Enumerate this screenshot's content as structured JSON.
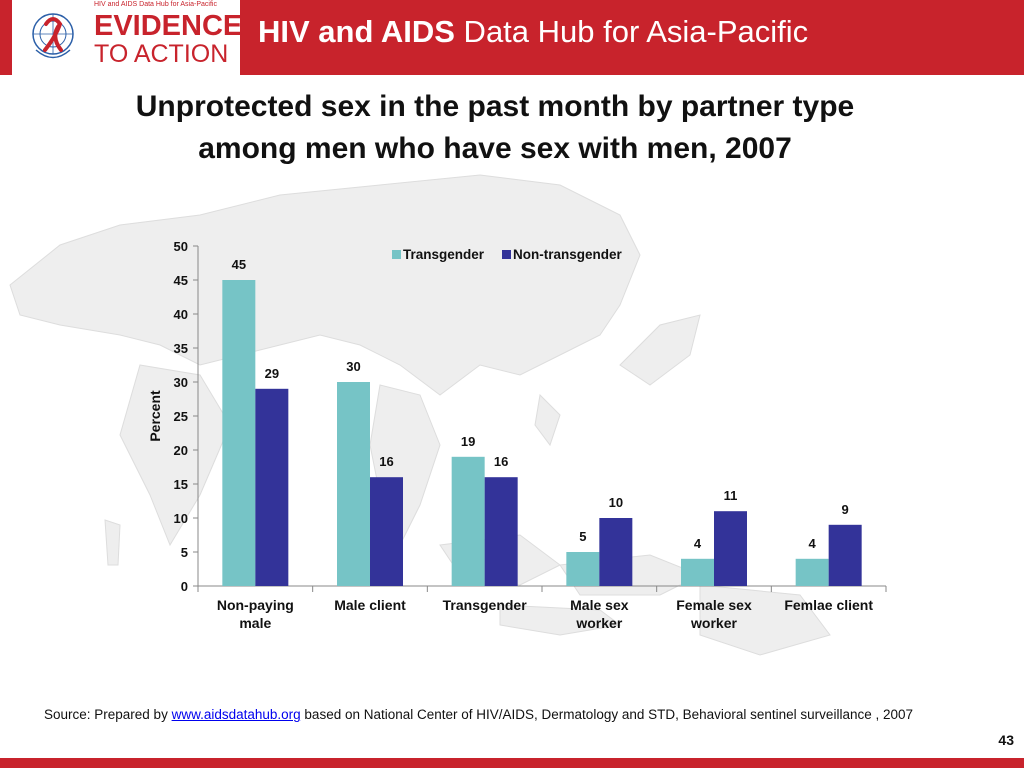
{
  "header": {
    "logo_subtitle": "HIV and AIDS Data Hub for Asia-Pacific",
    "logo_line1": "EVIDENCE",
    "logo_line2": "TO ACTION",
    "hub_title_bold": "HIV and AIDS",
    "hub_title_rest": " Data Hub for Asia-Pacific"
  },
  "slide": {
    "title_line1": "Unprotected sex in the past month by partner type",
    "title_line2": "among men who have sex with men, 2007"
  },
  "footer": {
    "source_prefix": "Source: Prepared by ",
    "source_link": "www.aidsdatahub.org",
    "source_suffix": "  based on National Center of HIV/AIDS, Dermatology and STD, Behavioral sentinel surveillance , 2007",
    "page_number": "43"
  },
  "colors": {
    "brand_red": "#c8232c",
    "transgender": "#76c4c6",
    "non_transgender": "#333399"
  },
  "chart_data": {
    "type": "bar",
    "title": "",
    "xlabel": "",
    "ylabel": "Percent",
    "ylim": [
      0,
      50
    ],
    "yticks": [
      0,
      5,
      10,
      15,
      20,
      25,
      30,
      35,
      40,
      45,
      50
    ],
    "categories": [
      [
        "Non-paying",
        "male"
      ],
      [
        "Male client"
      ],
      [
        "Transgender"
      ],
      [
        "Male sex",
        "worker"
      ],
      [
        "Female sex",
        "worker"
      ],
      [
        "Femlae client"
      ]
    ],
    "series": [
      {
        "name": "Transgender",
        "color": "#76c4c6",
        "values": [
          45,
          30,
          19,
          5,
          4,
          4
        ]
      },
      {
        "name": "Non-transgender",
        "color": "#333399",
        "values": [
          29,
          16,
          16,
          10,
          11,
          9
        ]
      }
    ],
    "legend": "top-right",
    "grid": false,
    "data_labels": true
  }
}
